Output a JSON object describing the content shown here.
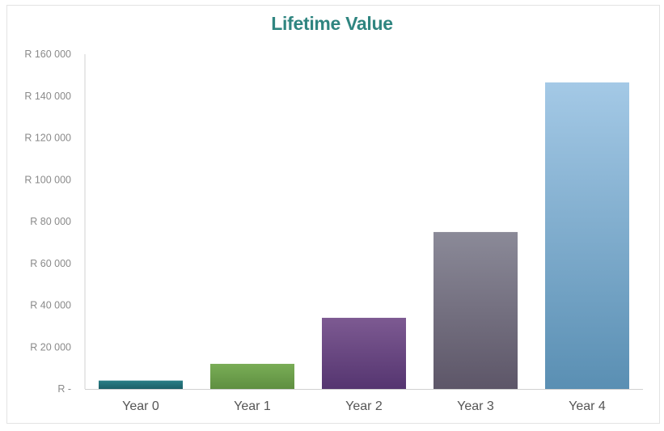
{
  "chart_data": {
    "type": "bar",
    "title": "Lifetime Value",
    "xlabel": "",
    "ylabel": "",
    "categories": [
      "Year 0",
      "Year 1",
      "Year 2",
      "Year 3",
      "Year 4"
    ],
    "values": [
      4000,
      12000,
      34000,
      75000,
      146500
    ],
    "ylim": [
      0,
      160000
    ],
    "yticks": [
      0,
      20000,
      40000,
      60000,
      80000,
      100000,
      120000,
      140000,
      160000
    ],
    "ytick_labels": [
      "R -",
      "R 20 000",
      "R 40 000",
      "R 60 000",
      "R 80 000",
      "R 100 000",
      "R 120 000",
      "R 140 000",
      "R 160 000"
    ],
    "grid": false,
    "legend": "none"
  },
  "colors": {
    "title": "#2f8580",
    "axis": "#d0d0d0",
    "bars": [
      [
        "#2a7f87",
        "#1c5f67"
      ],
      [
        "#79ad56",
        "#5f8f41"
      ],
      [
        "#7d5a92",
        "#553570"
      ],
      [
        "#8b8a98",
        "#5d5668"
      ],
      [
        "#a4c9e6",
        "#5a8fb3"
      ]
    ]
  }
}
